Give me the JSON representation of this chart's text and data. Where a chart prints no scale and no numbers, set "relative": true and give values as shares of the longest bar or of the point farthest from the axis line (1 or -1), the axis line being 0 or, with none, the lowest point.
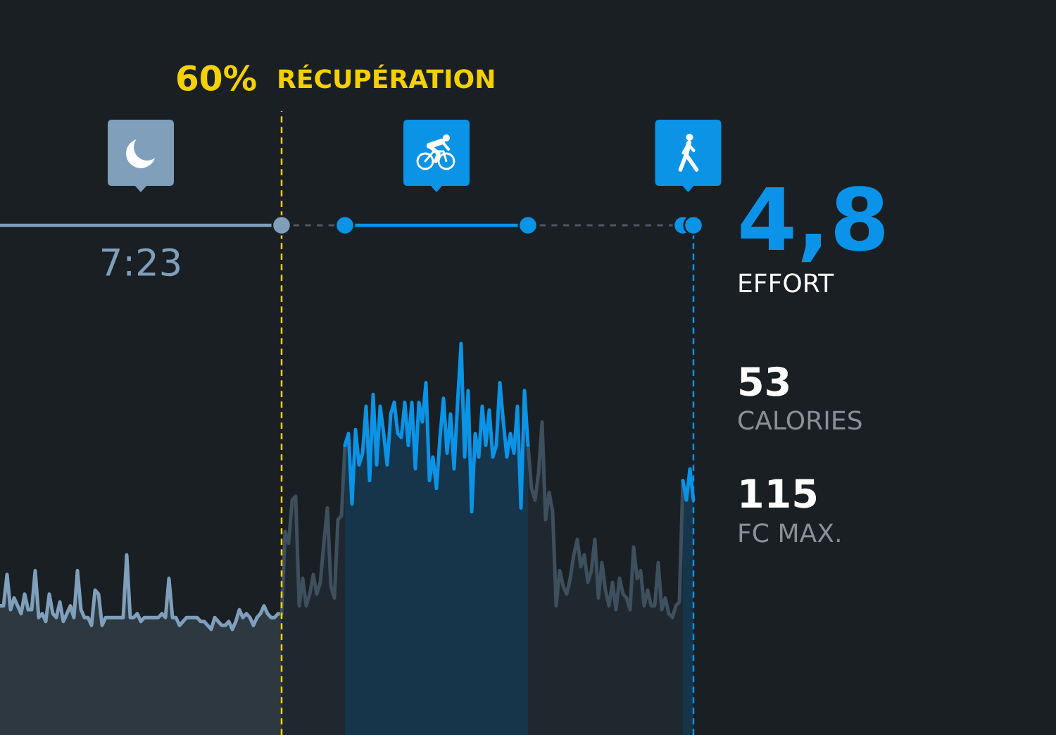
{
  "chart_data": {
    "type": "area",
    "relative": true,
    "categories": [
      null,
      null,
      null,
      null,
      null,
      null,
      null,
      null,
      null,
      null,
      null,
      null,
      null,
      null,
      null,
      null,
      null,
      null,
      null,
      null,
      null,
      null,
      null,
      null,
      null,
      null,
      null,
      null,
      null,
      null,
      null,
      null,
      null,
      null,
      null,
      null,
      null,
      null,
      null,
      null,
      null,
      null,
      null,
      null,
      null,
      null,
      null,
      null,
      null,
      null,
      null,
      null,
      null,
      null,
      null,
      null,
      null,
      null,
      null,
      null,
      null,
      null,
      null,
      null,
      null,
      null,
      null,
      null,
      null,
      null,
      null,
      null,
      null,
      null,
      null,
      null,
      null,
      null,
      null,
      null,
      null,
      null,
      null,
      null,
      null,
      null,
      null,
      null,
      null,
      null,
      null,
      null,
      null,
      null,
      null,
      null,
      null,
      null,
      null,
      null,
      null,
      null,
      null,
      null,
      null,
      null,
      null,
      null,
      null,
      null,
      null,
      null,
      null,
      null,
      null,
      null,
      null,
      null,
      null,
      null,
      null,
      null,
      null,
      null,
      null,
      null,
      null,
      null,
      null,
      null,
      null,
      null,
      null,
      null,
      null,
      null,
      null,
      null,
      null,
      null,
      null,
      null,
      null,
      null,
      null,
      null,
      null,
      null,
      null,
      null,
      null,
      null,
      null,
      null,
      null,
      null,
      null,
      null,
      null,
      null,
      null,
      null,
      null,
      null,
      null,
      null,
      null,
      null,
      null,
      null,
      null,
      null,
      null,
      null,
      null,
      null,
      null,
      null,
      null,
      null,
      null,
      null,
      null,
      null,
      null,
      null,
      null,
      null,
      null,
      null,
      null,
      null,
      null,
      null,
      null,
      null,
      null,
      null
    ],
    "series": [
      {
        "color": "#7f9fbb",
        "values": [
          0.33,
          0.33,
          0.41,
          0.32,
          0.35,
          0.33,
          0.31,
          0.36,
          0.32,
          0.32,
          0.42,
          0.3,
          0.31,
          0.29,
          0.36,
          0.31,
          0.3,
          0.34,
          0.29,
          0.31,
          0.33,
          0.3,
          0.42,
          0.32,
          0.3,
          0.3,
          0.28,
          0.37,
          0.36,
          0.28,
          0.3,
          0.3,
          0.3,
          0.3,
          0.3,
          0.3,
          0.46,
          0.3,
          0.3,
          0.31,
          0.29,
          0.3,
          0.3,
          0.3,
          0.3,
          0.3,
          0.31,
          0.3,
          0.4,
          0.3,
          0.3,
          0.28,
          0.29,
          0.3,
          0.3,
          0.3,
          0.3,
          0.29,
          0.29,
          0.28,
          0.27,
          0.3,
          0.29,
          0.28,
          0.28,
          0.29,
          0.27,
          0.29,
          0.32,
          0.3,
          0.31,
          0.3,
          0.28,
          0.3,
          0.31,
          0.33,
          0.31,
          0.3,
          0.3,
          0.31,
          0.31,
          null,
          null,
          null,
          null,
          null,
          null,
          null,
          null,
          null,
          null,
          null,
          null,
          null,
          null,
          null,
          null,
          null,
          null,
          null,
          null,
          null,
          null,
          null,
          null,
          null,
          null,
          null,
          null,
          null,
          null,
          null,
          null,
          null,
          null,
          null,
          null,
          null,
          null,
          null,
          null,
          null,
          null,
          null,
          null,
          null,
          null,
          null,
          null,
          null,
          null,
          null,
          null,
          null,
          null,
          null,
          null,
          null,
          null,
          null,
          null,
          null,
          null,
          null,
          null,
          null,
          null,
          null,
          null,
          null,
          null,
          null,
          null,
          null,
          null,
          null,
          null,
          null,
          null,
          null,
          null,
          null,
          null,
          null,
          null,
          null,
          null,
          null,
          null,
          null,
          null,
          null,
          null,
          null,
          null,
          null,
          null,
          null,
          null,
          null,
          null,
          null,
          null,
          null,
          null,
          null,
          null,
          null,
          null,
          null,
          null,
          null,
          null,
          null,
          null,
          null,
          null,
          null
        ]
      },
      {
        "color": "#3e4f5e",
        "values": [
          null,
          null,
          null,
          null,
          null,
          null,
          null,
          null,
          null,
          null,
          null,
          null,
          null,
          null,
          null,
          null,
          null,
          null,
          null,
          null,
          null,
          null,
          null,
          null,
          null,
          null,
          null,
          null,
          null,
          null,
          null,
          null,
          null,
          null,
          null,
          null,
          null,
          null,
          null,
          null,
          null,
          null,
          null,
          null,
          null,
          null,
          null,
          null,
          null,
          null,
          null,
          null,
          null,
          null,
          null,
          null,
          null,
          null,
          null,
          null,
          null,
          null,
          null,
          null,
          null,
          null,
          null,
          null,
          null,
          null,
          null,
          null,
          null,
          null,
          null,
          null,
          null,
          null,
          null,
          null,
          0.31,
          0.52,
          0.49,
          0.6,
          0.61,
          0.33,
          0.4,
          0.33,
          0.36,
          0.41,
          0.36,
          0.39,
          0.49,
          0.58,
          0.38,
          0.35,
          0.55,
          0.56,
          0.74,
          null,
          null,
          null,
          null,
          null,
          null,
          null,
          null,
          null,
          null,
          null,
          null,
          null,
          null,
          null,
          null,
          null,
          null,
          null,
          null,
          null,
          null,
          null,
          null,
          null,
          null,
          null,
          null,
          null,
          null,
          null,
          null,
          null,
          null,
          null,
          null,
          null,
          null,
          null,
          null,
          null,
          null,
          null,
          null,
          null,
          null,
          null,
          null,
          null,
          null,
          null,
          0.74,
          0.63,
          0.6,
          0.67,
          0.8,
          0.55,
          0.62,
          0.57,
          0.33,
          0.42,
          0.38,
          0.36,
          0.4,
          0.46,
          0.5,
          0.43,
          0.46,
          0.39,
          0.42,
          0.5,
          0.35,
          0.44,
          0.37,
          0.33,
          0.39,
          0.32,
          0.4,
          0.36,
          0.35,
          0.32,
          0.48,
          0.4,
          0.42,
          0.33,
          0.37,
          0.33,
          0.33,
          0.44,
          0.32,
          0.35,
          0.31,
          0.3,
          0.33,
          0.34,
          0.65,
          null,
          null,
          null
        ]
      },
      {
        "color": "#0b93e6",
        "values": [
          null,
          null,
          null,
          null,
          null,
          null,
          null,
          null,
          null,
          null,
          null,
          null,
          null,
          null,
          null,
          null,
          null,
          null,
          null,
          null,
          null,
          null,
          null,
          null,
          null,
          null,
          null,
          null,
          null,
          null,
          null,
          null,
          null,
          null,
          null,
          null,
          null,
          null,
          null,
          null,
          null,
          null,
          null,
          null,
          null,
          null,
          null,
          null,
          null,
          null,
          null,
          null,
          null,
          null,
          null,
          null,
          null,
          null,
          null,
          null,
          null,
          null,
          null,
          null,
          null,
          null,
          null,
          null,
          null,
          null,
          null,
          null,
          null,
          null,
          null,
          null,
          null,
          null,
          null,
          null,
          null,
          null,
          null,
          null,
          null,
          null,
          null,
          null,
          null,
          null,
          null,
          null,
          null,
          null,
          null,
          null,
          null,
          null,
          0.74,
          0.77,
          0.59,
          0.78,
          0.69,
          0.72,
          0.84,
          0.65,
          0.87,
          0.69,
          0.84,
          0.77,
          0.69,
          0.82,
          0.85,
          0.77,
          0.76,
          0.85,
          0.74,
          0.85,
          0.68,
          0.85,
          0.8,
          0.9,
          0.65,
          0.71,
          0.63,
          0.76,
          0.86,
          0.72,
          0.82,
          0.68,
          0.85,
          1,
          0.71,
          0.88,
          0.57,
          0.77,
          0.71,
          0.84,
          0.74,
          0.83,
          0.71,
          0.74,
          0.9,
          0.8,
          0.71,
          0.77,
          0.72,
          0.84,
          0.58,
          0.88,
          0.74,
          null,
          null,
          null,
          null,
          null,
          null,
          null,
          null,
          null,
          null,
          null,
          null,
          null,
          null,
          null,
          null,
          null,
          null,
          null,
          null,
          null,
          null,
          null,
          null,
          null,
          null,
          null,
          null,
          null,
          null,
          null,
          null,
          null,
          null,
          null,
          null,
          null,
          null,
          null,
          null,
          null,
          null,
          null,
          0.65,
          0.6,
          0.68,
          0.6
        ]
      }
    ],
    "annotations": [
      "60% RÉCUPÉRATION",
      "7:23",
      "4,8",
      "EFFORT",
      "53",
      "CALORIES",
      "115",
      "FC MAX."
    ]
  }
}
